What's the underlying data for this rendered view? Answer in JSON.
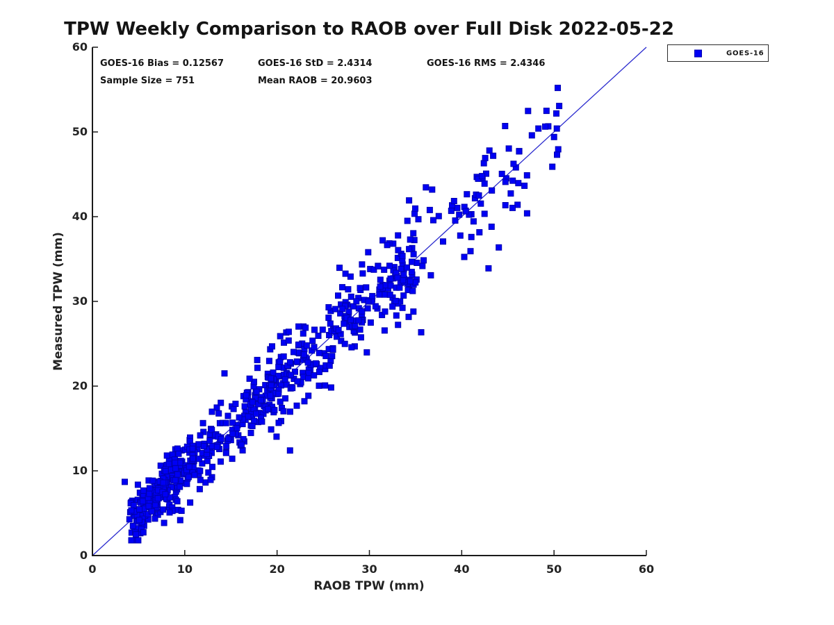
{
  "chart_data": {
    "type": "scatter",
    "title": "TPW Weekly Comparison to RAOB over Full Disk 2022-05-22",
    "xlabel": "RAOB TPW (mm)",
    "ylabel": "Measured TPW (mm)",
    "xlim": [
      0,
      60
    ],
    "ylim": [
      0,
      60
    ],
    "xticks": [
      0,
      10,
      20,
      30,
      40,
      50,
      60
    ],
    "yticks": [
      0,
      10,
      20,
      30,
      40,
      50,
      60
    ],
    "grid": false,
    "legend_position": "top-right-outside",
    "legend": {
      "entries": [
        {
          "label": "GOES-16",
          "marker": "filled-square",
          "color": "#0000f4"
        }
      ]
    },
    "series": [
      {
        "name": "GOES-16",
        "marker": "square",
        "marker_size_px": 8,
        "color": "#0000f4",
        "edge_color": "#0000b0",
        "sample_size": 751
      }
    ],
    "identity_line": {
      "from": [
        0,
        0
      ],
      "to": [
        60,
        60
      ],
      "color": "#2a2ace"
    },
    "axis_color": "#1a1a1a",
    "stats": {
      "bias": 0.12567,
      "std": 2.4314,
      "rms": 2.4346,
      "sample_size": 751,
      "mean_raob": 20.9603
    },
    "x_observed_range": [
      3.4,
      50.8
    ],
    "y_observed_range": [
      3.2,
      55.2
    ],
    "notable_points": [
      [
        50.4,
        55.2
      ],
      [
        50.3,
        50.4
      ],
      [
        50.0,
        49.4
      ],
      [
        47.6,
        49.6
      ],
      [
        44.7,
        50.7
      ],
      [
        43.0,
        47.8
      ],
      [
        42.9,
        33.9
      ],
      [
        36.8,
        43.2
      ],
      [
        21.4,
        12.4
      ],
      [
        14.3,
        21.5
      ],
      [
        3.5,
        8.7
      ],
      [
        5.3,
        3.3
      ]
    ]
  },
  "stats_panel": {
    "row1": [
      "GOES-16 Bias = 0.12567",
      "GOES-16 StD = 2.4314",
      "GOES-16 RMS = 2.4346"
    ],
    "row2": [
      "Sample Size = 751",
      "Mean RAOB = 20.9603"
    ]
  }
}
